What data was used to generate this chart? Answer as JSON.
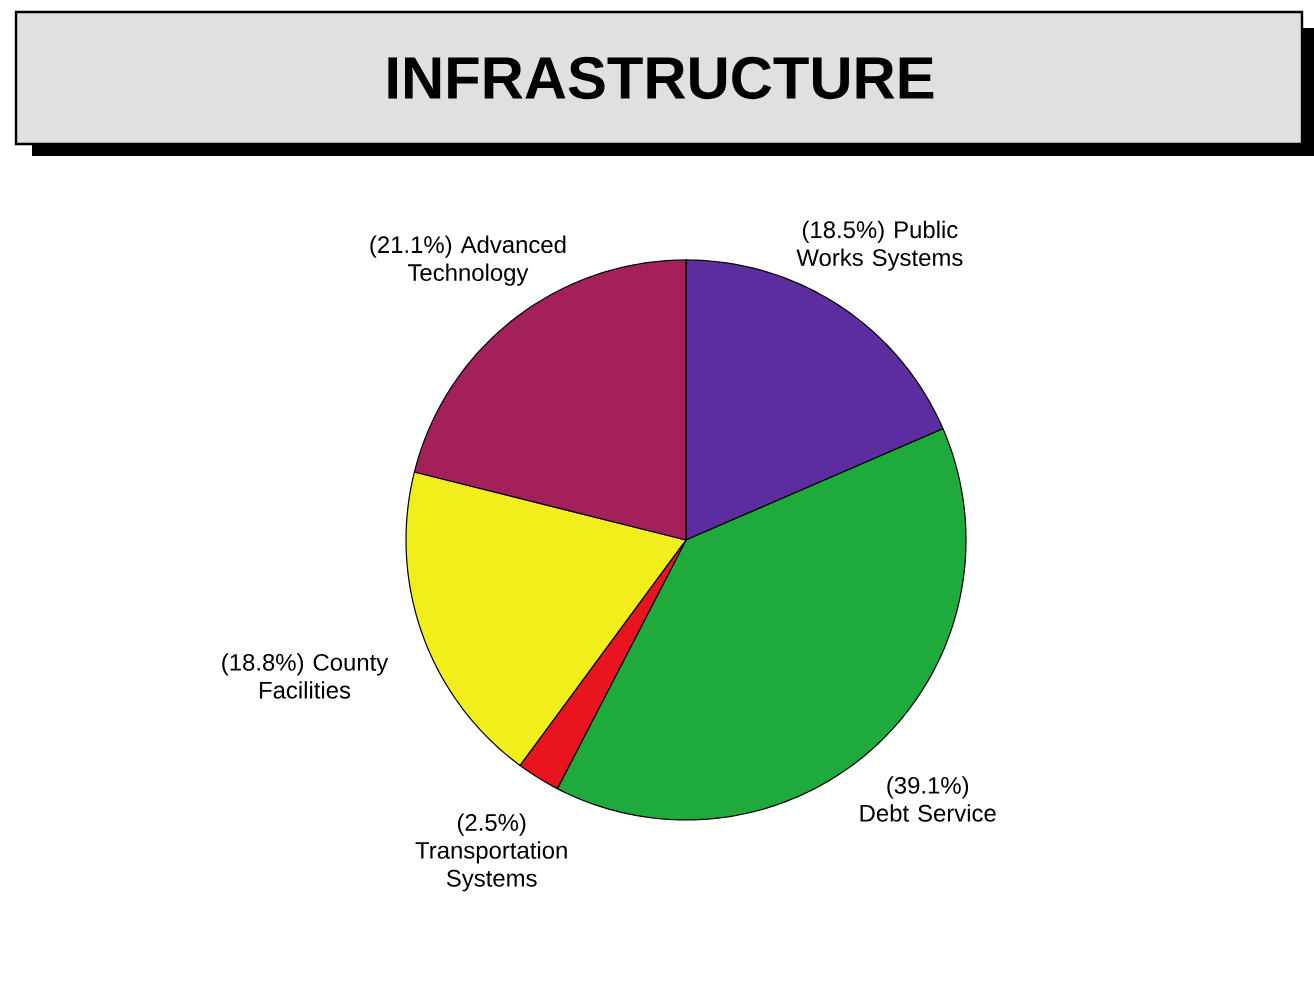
{
  "chart_data": {
    "type": "pie",
    "title": "INFRASTRUCTURE",
    "categories": [
      "Public Works Systems",
      "Debt Service",
      "Transportation Systems",
      "County Facilities",
      "Advanced Technology"
    ],
    "values": [
      18.5,
      39.1,
      2.5,
      18.8,
      21.1
    ],
    "value_labels": [
      "(18.5%)",
      "(39.1%)",
      "(2.5%)",
      "(18.8%)",
      "(21.1%)"
    ],
    "colors": [
      "#5b2d9e",
      "#1faa3c",
      "#e8141e",
      "#f2ee1c",
      "#a3205a"
    ]
  }
}
